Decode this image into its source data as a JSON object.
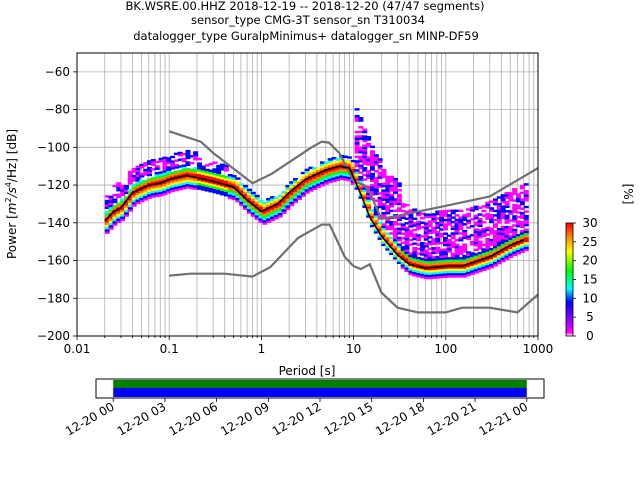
{
  "title": {
    "line1": "BK.WSRE.00.HHZ   2018-12-19 -- 2018-12-20  (47/47 segments)",
    "line2": "sensor_type CMG-3T sensor_sn T310034",
    "line3": "datalogger_type GuralpMinimus+ datalogger_sn MINP-DF59"
  },
  "ylabel_prefix": "Power [",
  "ylabel_unit_m": "m",
  "ylabel_exp_m": "2",
  "ylabel_slash": "/s",
  "ylabel_exp_s": "4",
  "ylabel_rest": "/Hz] [dB]",
  "xlabel": "Period [s]",
  "colorbar_label": "[%]",
  "colors": {
    "nlnm_nhnm": "#707070",
    "mean_curve": "#000000",
    "grid": "#b0b0b0",
    "coverage_green": "#008000",
    "coverage_blue": "#0000ff"
  },
  "chart_data": [
    {
      "type": "heatmap",
      "x_scale": "log",
      "xlim": [
        0.01,
        1000
      ],
      "ylim": [
        -200,
        -50
      ],
      "xticks": [
        0.01,
        0.1,
        1,
        10,
        100,
        1000
      ],
      "xtick_labels": [
        "0.01",
        "0.1",
        "1",
        "10",
        "100",
        "1000"
      ],
      "yticks": [
        -200,
        -180,
        -160,
        -140,
        -120,
        -100,
        -80,
        -60
      ],
      "ytick_labels": [
        "−200",
        "−180",
        "−160",
        "−140",
        "−120",
        "−100",
        "−80",
        "−60"
      ],
      "grid": true,
      "colorbar": {
        "range": [
          0,
          30
        ],
        "ticks": [
          0,
          5,
          10,
          15,
          20,
          25,
          30
        ],
        "colormap": [
          "#ffffff",
          "#ff00ff",
          "#0000ff",
          "#00ffff",
          "#00ff00",
          "#ffff00",
          "#ff8000",
          "#ff0000"
        ]
      },
      "noise_models": {
        "NLNM": {
          "x": [
            0.1,
            0.17,
            0.4,
            0.8,
            1.25,
            2.5,
            4.5,
            5.5,
            8,
            10,
            12,
            15,
            20,
            30,
            50,
            100,
            150,
            300,
            600,
            1000
          ],
          "y": [
            -168,
            -167,
            -167,
            -168.5,
            -163.5,
            -148,
            -141,
            -141,
            -158,
            -163,
            -164.5,
            -162,
            -177,
            -185,
            -187.5,
            -187.5,
            -185,
            -185,
            -187.5,
            -178
          ]
        },
        "NHNM": {
          "x": [
            0.1,
            0.22,
            0.3,
            0.8,
            1.3,
            3.5,
            4.5,
            5.4,
            7,
            10,
            13,
            15,
            20,
            40,
            100,
            300,
            1000
          ],
          "y": [
            -91.5,
            -97,
            -103,
            -119,
            -114,
            -100,
            -97,
            -97.5,
            -103,
            -118,
            -120,
            -124,
            -138,
            -135,
            -131,
            -126,
            -111
          ]
        }
      },
      "mean_curve": {
        "x": [
          0.02,
          0.025,
          0.03,
          0.04,
          0.06,
          0.08,
          0.1,
          0.15,
          0.2,
          0.3,
          0.5,
          0.7,
          1,
          1.5,
          2,
          3,
          5,
          7,
          9,
          10,
          12,
          15,
          20,
          30,
          40,
          60,
          100,
          150,
          300,
          500,
          700
        ],
        "y": [
          -139,
          -134,
          -132,
          -124,
          -120,
          -119,
          -117,
          -115,
          -116,
          -118,
          -121,
          -128,
          -134,
          -130,
          -124,
          -117,
          -112,
          -110,
          -111,
          -116,
          -125,
          -137,
          -147,
          -157,
          -162,
          -164,
          -163,
          -163,
          -158,
          -152,
          -149
        ]
      },
      "colorbar_label": "[%]"
    },
    {
      "type": "bar",
      "description_role": "data coverage timeline",
      "xtick_labels": [
        "12-20 00",
        "12-20 03",
        "12-20 06",
        "12-20 09",
        "12-20 12",
        "12-20 15",
        "12-20 18",
        "12-20 21",
        "12-21 00"
      ],
      "xlim_hours": [
        -1,
        25
      ],
      "series": [
        {
          "values": [
            [
              0,
              24
            ]
          ]
        },
        {
          "values": [
            [
              0,
              24
            ]
          ]
        }
      ]
    }
  ]
}
